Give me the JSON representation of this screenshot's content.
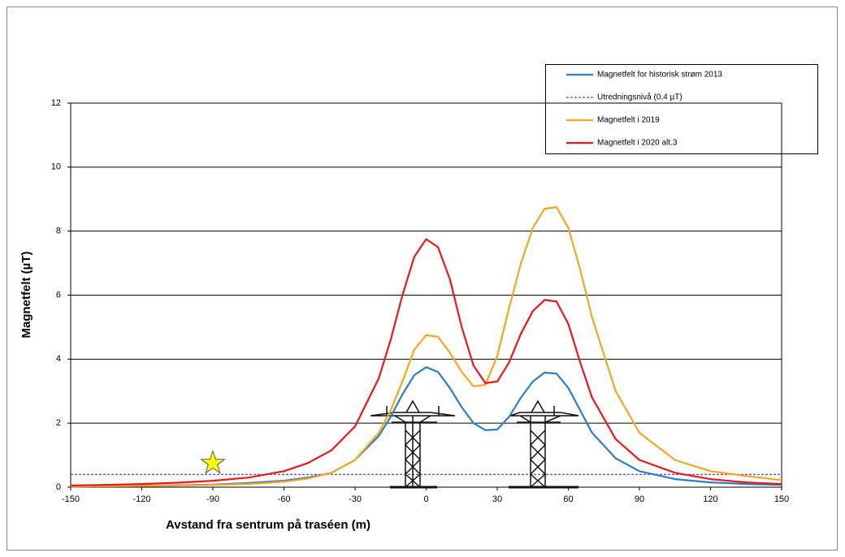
{
  "chart_data": {
    "type": "line",
    "x_label": "Avstand fra sentrum på traséen (m)",
    "y_label": "Magnetfelt (µT)",
    "xlim": [
      -150,
      150
    ],
    "xticks": [
      -150,
      -120,
      -90,
      -60,
      -30,
      0,
      30,
      60,
      90,
      120,
      150
    ],
    "ylim": [
      0,
      12
    ],
    "yticks": [
      0,
      2,
      4,
      6,
      8,
      10,
      12
    ],
    "grid": true,
    "x": [
      -150,
      -135,
      -120,
      -105,
      -90,
      -75,
      -60,
      -50,
      -40,
      -30,
      -20,
      -15,
      -10,
      -5,
      0,
      5,
      10,
      15,
      20,
      25,
      30,
      35,
      40,
      45,
      50,
      55,
      60,
      65,
      70,
      80,
      90,
      105,
      120,
      135,
      150
    ],
    "series": [
      {
        "name": "Magnetfelt for historisk strøm 2013",
        "color": "#2e7dc5",
        "values": [
          0.02,
          0.03,
          0.04,
          0.06,
          0.08,
          0.13,
          0.2,
          0.3,
          0.45,
          0.85,
          1.6,
          2.2,
          2.9,
          3.5,
          3.75,
          3.6,
          3.1,
          2.5,
          2.0,
          1.78,
          1.8,
          2.2,
          2.8,
          3.3,
          3.58,
          3.55,
          3.1,
          2.4,
          1.7,
          0.9,
          0.5,
          0.25,
          0.15,
          0.1,
          0.07
        ]
      },
      {
        "name": "Magnetfelt i 2019",
        "color": "#f5a623",
        "values": [
          0.02,
          0.03,
          0.04,
          0.05,
          0.07,
          0.1,
          0.17,
          0.27,
          0.45,
          0.85,
          1.7,
          2.4,
          3.3,
          4.3,
          4.75,
          4.7,
          4.2,
          3.6,
          3.15,
          3.2,
          4.1,
          5.6,
          7.0,
          8.1,
          8.7,
          8.75,
          8.1,
          6.8,
          5.3,
          3.0,
          1.7,
          0.85,
          0.5,
          0.35,
          0.22
        ]
      },
      {
        "name": "Magnetfelt i 2020 alt.3",
        "color": "#e8191e",
        "values": [
          0.05,
          0.07,
          0.1,
          0.14,
          0.2,
          0.3,
          0.5,
          0.75,
          1.15,
          1.9,
          3.4,
          4.6,
          6.0,
          7.2,
          7.75,
          7.5,
          6.5,
          5.0,
          3.8,
          3.25,
          3.3,
          3.9,
          4.8,
          5.5,
          5.85,
          5.8,
          5.1,
          3.9,
          2.8,
          1.5,
          0.85,
          0.45,
          0.25,
          0.15,
          0.1
        ]
      }
    ],
    "threshold": {
      "name": "Utredningsnivå (0,4 µT)",
      "value": 0.4,
      "color": "#1f1fd6"
    },
    "star": {
      "x": -90,
      "y": 0.75
    }
  }
}
